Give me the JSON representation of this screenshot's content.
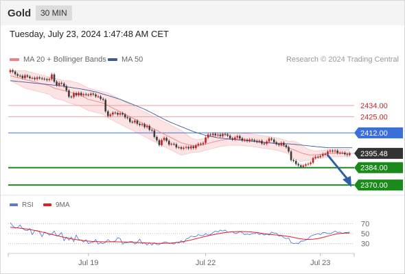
{
  "header": {
    "symbol": "Gold",
    "timeframe": "30 MIN"
  },
  "timestamp": "Tuesday, July 23, 2024 1:47:48 AM CET",
  "credit": "Research © 2024 Trading Central",
  "colors": {
    "bollinger": "#f08080",
    "bollinger_fill": "#fde4e4",
    "ma50": "#3a5a9a",
    "candle_up": "#c81e1e",
    "candle_down": "#3b3b3b",
    "resistance": "#e8a0a0",
    "resistance_text": "#c82828",
    "pivot": "#3a70d8",
    "support": "#1a8a1a",
    "current": "#333333",
    "rsi": "#5a7ad8",
    "rsi_ma": "#e02020",
    "arrow": "#2f5fa8"
  },
  "chart_data": [
    {
      "type": "candlestick",
      "title": "",
      "legend": [
        {
          "name": "MA 20 + Bollinger Bands",
          "color": "#f08080"
        },
        {
          "name": "MA 50",
          "color": "#3a5a9a"
        }
      ],
      "ylim": [
        2364,
        2466
      ],
      "xlim": [
        0,
        140
      ],
      "x_ticks": [
        {
          "x": 32,
          "label": "Jul 19"
        },
        {
          "x": 80,
          "label": "Jul 22"
        },
        {
          "x": 127,
          "label": "Jul 23"
        }
      ],
      "price_levels": [
        {
          "label": "2434.00",
          "value": 2434.0,
          "kind": "resistance"
        },
        {
          "label": "2425.00",
          "value": 2425.0,
          "kind": "resistance"
        },
        {
          "label": "2412.00",
          "value": 2412.0,
          "kind": "pivot"
        },
        {
          "label": "2395.48",
          "value": 2395.48,
          "kind": "current"
        },
        {
          "label": "2384.00",
          "value": 2384.0,
          "kind": "support"
        },
        {
          "label": "2370.00",
          "value": 2370.0,
          "kind": "support"
        }
      ],
      "close": [
        2462.4,
        2461.3,
        2459.2,
        2458,
        2457.9,
        2456.1,
        2458.2,
        2457.3,
        2456.1,
        2456.2,
        2455.3,
        2456.6,
        2455.9,
        2455.6,
        2455.2,
        2454.5,
        2455.3,
        2459,
        2453.2,
        2450.3,
        2452.2,
        2451.6,
        2449.6,
        2446.1,
        2441.1,
        2440.9,
        2444,
        2442.2,
        2444.2,
        2442.3,
        2443.1,
        2442.7,
        2442.4,
        2443.6,
        2442.9,
        2441.3,
        2441.3,
        2439.3,
        2438.6,
        2429.3,
        2425.6,
        2426.8,
        2428.3,
        2428,
        2426.7,
        2427.8,
        2426.8,
        2424.5,
        2423.9,
        2420.9,
        2420.5,
        2421.8,
        2419.3,
        2418.3,
        2419,
        2416.6,
        2417.6,
        2414.4,
        2413.9,
        2408.7,
        2406.1,
        2402.2,
        2406.2,
        2407.9,
        2405.6,
        2402.6,
        2403.2,
        2402.8,
        2400.2,
        2400.4,
        2399.3,
        2400,
        2400.6,
        2399.5,
        2401.1,
        2399.8,
        2402,
        2403.1,
        2402.9,
        2403.9,
        2408.2,
        2410.7,
        2410.1,
        2411.3,
        2410,
        2410.5,
        2409.3,
        2411,
        2410.7,
        2409.7,
        2407.6,
        2406.6,
        2408.3,
        2409.4,
        2407.6,
        2405.9,
        2406.3,
        2405.5,
        2406.6,
        2406.2,
        2405.5,
        2404.8,
        2405.6,
        2403.4,
        2403.2,
        2405,
        2407.4,
        2406.6,
        2404.4,
        2403,
        2402.2,
        2404,
        2402.1,
        2400.5,
        2397,
        2390.1,
        2389.4,
        2386.9,
        2385.8,
        2384.7,
        2385.7,
        2386.6,
        2387,
        2388,
        2391.7,
        2392.7,
        2392.5,
        2393.5,
        2395,
        2394.7,
        2397,
        2397.7,
        2397.2,
        2397.7,
        2395.8,
        2396,
        2396,
        2394.8,
        2394.2,
        2395.5
      ],
      "bb_mid": [
        2458,
        2457.5,
        2457,
        2456.5,
        2456,
        2455.5,
        2455,
        2454.5,
        2454,
        2453.5,
        2453,
        2452.5,
        2452,
        2451.5,
        2451,
        2450.5,
        2450,
        2449,
        2448,
        2447.5,
        2447,
        2446.5,
        2446,
        2445.5,
        2445,
        2444.5,
        2444,
        2443.5,
        2443,
        2442,
        2441,
        2440,
        2439,
        2438.5,
        2438,
        2437.5,
        2437,
        2436.5,
        2436,
        2435,
        2434,
        2433,
        2432,
        2431,
        2430,
        2429,
        2428,
        2427,
        2426,
        2425,
        2424,
        2423,
        2422,
        2421,
        2420,
        2419,
        2418,
        2417,
        2416,
        2415,
        2414,
        2413,
        2412,
        2411,
        2410,
        2409,
        2408,
        2407,
        2406,
        2405,
        2404,
        2403.5,
        2403,
        2402.5,
        2402,
        2401.7,
        2401.5,
        2401.5,
        2402,
        2402.5,
        2403,
        2403.5,
        2404,
        2404.5,
        2405,
        2405.5,
        2406,
        2406.3,
        2406.6,
        2406.8,
        2407,
        2407,
        2407,
        2407,
        2407,
        2406.8,
        2406.6,
        2406.4,
        2406.2,
        2406,
        2405.7,
        2405.4,
        2405.1,
        2404.8,
        2404.5,
        2404.3,
        2404,
        2403.7,
        2403.4,
        2403,
        2402.5,
        2402,
        2401.4,
        2400.8,
        2400,
        2399.2,
        2398.4,
        2397.6,
        2396.8,
        2396,
        2395.3,
        2394.8,
        2394.4,
        2394.2,
        2394.2,
        2394.3,
        2394.5,
        2394.7,
        2394.9,
        2395.1,
        2395.3,
        2395.5,
        2395.6,
        2395.7,
        2395.8,
        2395.8,
        2395.7,
        2395.7,
        2395.6,
        2395.6
      ],
      "bb_width": [
        4,
        4.5,
        5,
        5.5,
        6,
        6.5,
        7,
        7,
        7,
        7,
        7,
        7,
        7,
        7,
        7,
        7,
        7,
        7.5,
        8,
        8,
        8,
        8,
        8,
        8.5,
        9,
        9,
        9,
        9,
        9,
        9,
        9,
        9,
        9,
        9,
        9,
        9,
        9,
        9,
        9,
        9.5,
        10,
        10,
        10,
        10,
        10,
        10,
        10,
        10,
        10,
        10,
        10,
        10,
        10,
        10,
        10,
        10,
        10,
        10,
        10,
        10,
        10,
        10,
        10,
        10,
        10,
        10,
        10,
        10,
        10,
        10,
        10,
        9,
        8,
        7,
        6,
        5.5,
        5,
        5,
        5,
        5,
        5,
        5,
        5,
        5,
        5,
        5,
        5,
        5,
        5,
        5,
        5,
        5,
        5,
        5,
        5,
        5,
        5,
        5,
        5,
        5,
        5,
        5,
        5,
        5,
        5,
        5,
        5,
        5,
        5,
        5,
        5,
        5,
        5,
        5,
        5,
        6,
        7,
        7,
        7,
        7,
        6,
        5,
        4.5,
        4,
        3.5,
        3,
        3,
        3,
        3,
        3,
        3,
        3,
        3,
        3,
        3,
        3,
        3,
        3,
        3,
        3
      ],
      "ma50": [
        2454,
        2453.8,
        2453.6,
        2453.4,
        2453.2,
        2453,
        2452.8,
        2452.6,
        2452.4,
        2452.2,
        2452,
        2451.8,
        2451.6,
        2451.4,
        2451.2,
        2451,
        2450.8,
        2450.6,
        2450.4,
        2450.2,
        2450,
        2449.7,
        2449.4,
        2449.1,
        2448.8,
        2448.5,
        2448.2,
        2447.9,
        2447.6,
        2447.3,
        2447,
        2446.6,
        2446.2,
        2445.8,
        2445.4,
        2445,
        2444.4,
        2443.8,
        2443.2,
        2442.6,
        2442,
        2441.4,
        2440.8,
        2440.2,
        2439.6,
        2439,
        2438.2,
        2437.4,
        2436.6,
        2435.8,
        2435,
        2434.2,
        2433.4,
        2432.6,
        2431.8,
        2431,
        2430,
        2429,
        2428,
        2427,
        2426,
        2425,
        2424,
        2423,
        2422,
        2421,
        2420.2,
        2419.4,
        2418.6,
        2417.8,
        2417,
        2416.2,
        2415.4,
        2414.6,
        2413.8,
        2413,
        2412.4,
        2411.8,
        2411.2,
        2410.6,
        2410,
        2409.6,
        2409.2,
        2408.8,
        2408.4,
        2408,
        2407.8,
        2407.6,
        2407.4,
        2407.2,
        2407,
        2406.8,
        2406.6,
        2406.4,
        2406.2,
        2406,
        2405.8,
        2405.6,
        2405.4,
        2405.2,
        2405,
        2404.8,
        2404.6,
        2404.4,
        2404.2,
        2404,
        2403.9,
        2403.8,
        2403.7,
        2403.6,
        2403.5,
        2403.4,
        2403.3,
        2403.2,
        2403.1,
        2403,
        2402.8,
        2402.6,
        2402.4,
        2402.2,
        2402,
        2401.8,
        2401.6,
        2401.4,
        2401.2,
        2401,
        2400.8,
        2400.6,
        2400.4,
        2400.2,
        2400,
        2400,
        2400,
        2400,
        2400,
        2400,
        2400,
        2400,
        2400,
        2400,
        2400
      ]
    },
    {
      "type": "line",
      "title": "",
      "legend": [
        {
          "name": "RSI",
          "color": "#5a7ad8"
        },
        {
          "name": "9MA",
          "color": "#e02020"
        }
      ],
      "ylim": [
        20,
        80
      ],
      "y_ticks": [
        "70",
        "50",
        "30"
      ],
      "y_tick_values": [
        70,
        50,
        30
      ],
      "xlim": [
        0,
        140
      ],
      "rsi": [
        72,
        65,
        61,
        62,
        67,
        60,
        57,
        56,
        60,
        48,
        56,
        56,
        53,
        44,
        53,
        51,
        47,
        49,
        55,
        45,
        47,
        52,
        36,
        43,
        37,
        43,
        34,
        47,
        38,
        37,
        33,
        38,
        30,
        32,
        33,
        38,
        29,
        32,
        30,
        33,
        38,
        34,
        34,
        35,
        42,
        40,
        29,
        32,
        32,
        34,
        34,
        29,
        33,
        39,
        30,
        32,
        27,
        32,
        27,
        32,
        28,
        28,
        31,
        33,
        33,
        30,
        31,
        29,
        33,
        31,
        36,
        32,
        39,
        41,
        45,
        44,
        44,
        48,
        46,
        46,
        50,
        47,
        48,
        52,
        55,
        53,
        57,
        55,
        57,
        53,
        53,
        54,
        50,
        51,
        54,
        52,
        48,
        49,
        48,
        50,
        50,
        52,
        48,
        50,
        47,
        49,
        47,
        53,
        51,
        51,
        45,
        46,
        42,
        40,
        41,
        32,
        30,
        31,
        30,
        35,
        35,
        37,
        40,
        45,
        47,
        48,
        50,
        48,
        52,
        52,
        50,
        50,
        52,
        55,
        52,
        53,
        50,
        52,
        52,
        53
      ],
      "rsi_ma": [
        62.6,
        62.2,
        61.8,
        61.3,
        60.8,
        60.2,
        59.6,
        58.9,
        58.1,
        57.2,
        56.3,
        55.3,
        54.3,
        53.2,
        52.1,
        50.9,
        49.7,
        48.5,
        47.2,
        46.0,
        44.8,
        43.7,
        42.6,
        41.6,
        40.6,
        39.7,
        38.8,
        38.0,
        37.2,
        36.6,
        36.0,
        35.4,
        35.0,
        34.6,
        34.3,
        34.1,
        33.9,
        33.8,
        33.7,
        33.7,
        33.7,
        33.7,
        33.7,
        33.6,
        33.6,
        33.5,
        33.4,
        33.2,
        33.0,
        32.8,
        32.6,
        32.4,
        32.1,
        31.9,
        31.7,
        31.5,
        31.3,
        31.1,
        30.9,
        30.8,
        30.7,
        30.6,
        30.6,
        30.7,
        30.8,
        31.0,
        31.3,
        31.7,
        32.2,
        32.8,
        33.5,
        34.3,
        35.2,
        36.2,
        37.3,
        38.5,
        39.7,
        40.9,
        42.1,
        43.3,
        44.5,
        45.6,
        46.7,
        47.7,
        48.7,
        49.6,
        50.5,
        51.3,
        52.0,
        52.6,
        53.1,
        53.5,
        53.8,
        54.0,
        54.1,
        54.1,
        54.0,
        53.8,
        53.5,
        53.1,
        52.6,
        52.0,
        51.3,
        50.6,
        49.9,
        49.2,
        48.6,
        48.1,
        47.6,
        47.2,
        46.8,
        46.3,
        45.7,
        45.0,
        44.2,
        43.3,
        42.3,
        41.3,
        40.4,
        39.6,
        39.0,
        38.6,
        38.4,
        38.5,
        38.8,
        39.4,
        40.2,
        41.2,
        42.4,
        43.7,
        45.0,
        46.3,
        47.5,
        48.6,
        49.5,
        50.2,
        50.7,
        51.0,
        51.1,
        51.1
      ]
    }
  ]
}
